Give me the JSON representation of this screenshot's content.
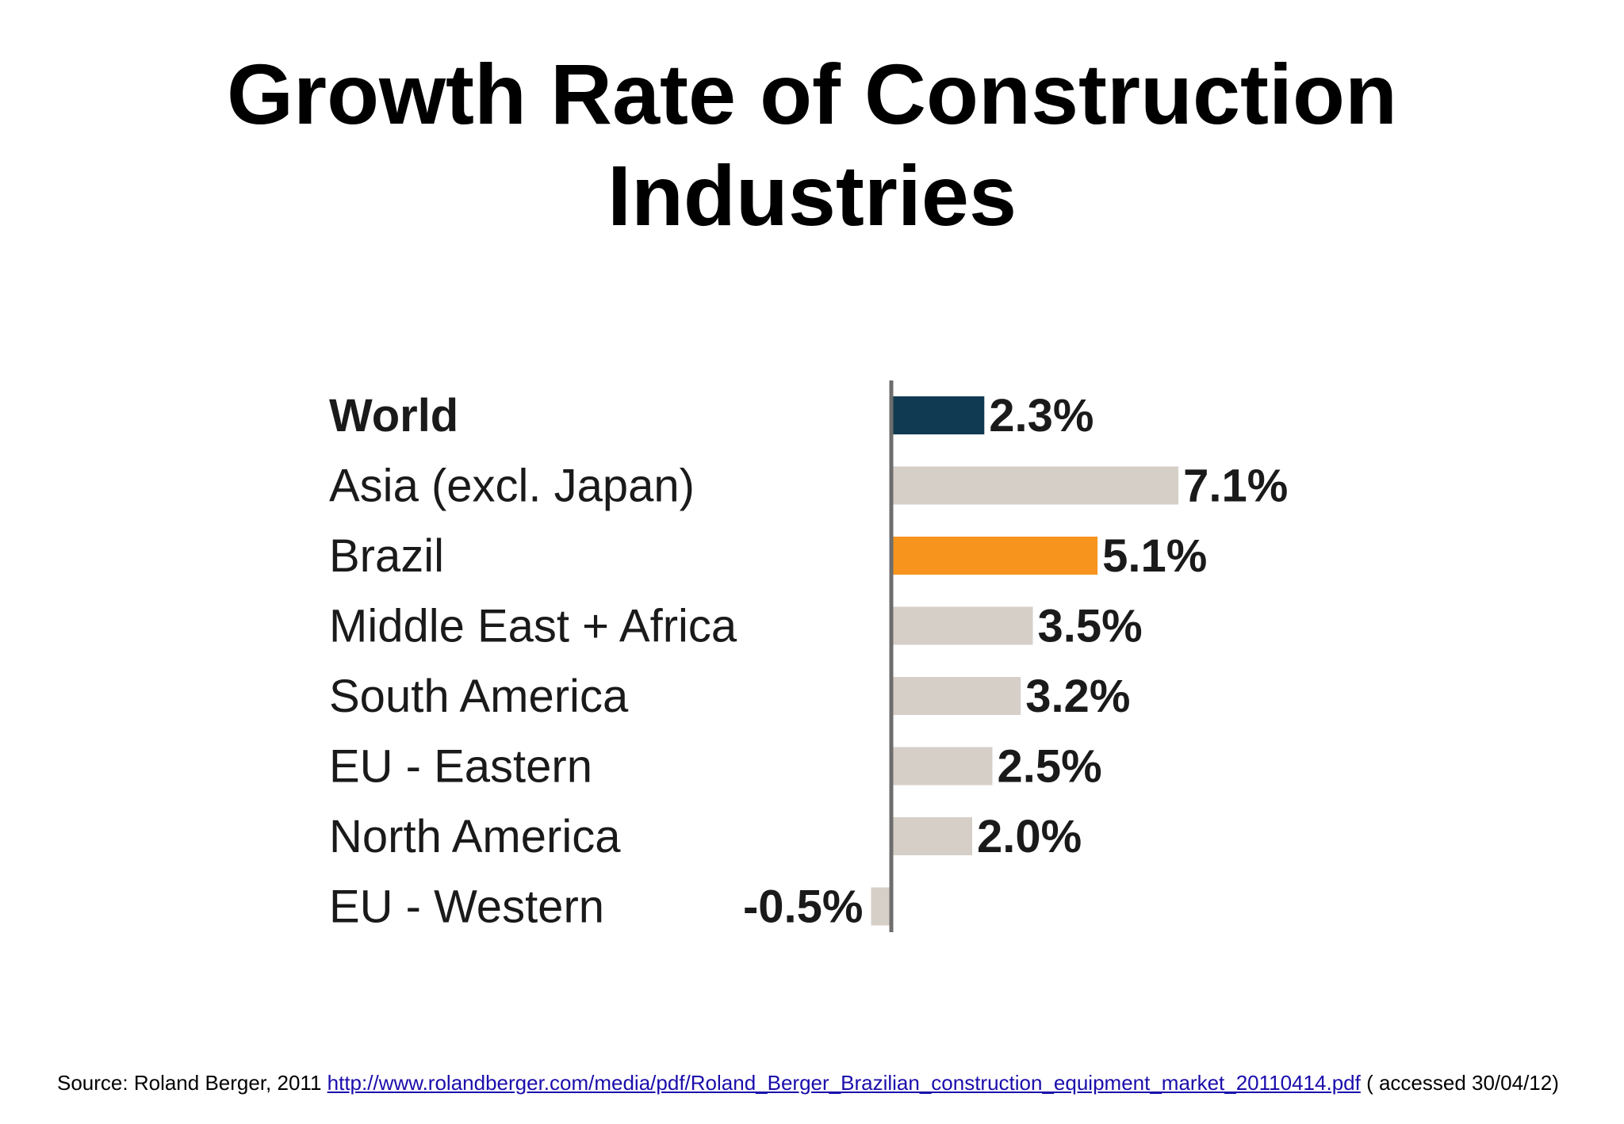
{
  "slide": {
    "title": "Growth Rate of Construction Industries"
  },
  "chart_data": {
    "type": "bar",
    "orientation": "horizontal",
    "categories": [
      "World",
      "Asia (excl. Japan)",
      "Brazil",
      "Middle East + Africa",
      "South America",
      "EU - Eastern",
      "North America",
      "EU - Western"
    ],
    "values": [
      2.3,
      7.1,
      5.1,
      3.5,
      3.2,
      2.5,
      2.0,
      -0.5
    ],
    "value_labels": [
      "2.3%",
      "7.1%",
      "5.1%",
      "3.5%",
      "3.2%",
      "2.5%",
      "2.0%",
      "-0.5%"
    ],
    "bar_colors": [
      "#0f3a52",
      "#d6cfc8",
      "#f7941d",
      "#d6cfc8",
      "#d6cfc8",
      "#d6cfc8",
      "#d6cfc8",
      "#d6cfc8"
    ],
    "bold_categories": [
      "World"
    ],
    "title": "",
    "xlabel": "",
    "ylabel": "",
    "unit": "%",
    "grid": false,
    "legend": "none"
  },
  "footer": {
    "source_prefix": "Source:  Roland Berger, 2011 ",
    "source_link": "http://www.rolandberger.com/media/pdf/Roland_Berger_Brazilian_construction_equipment_market_20110414.pdf",
    "source_suffix": " ( accessed 30/04/12)"
  }
}
